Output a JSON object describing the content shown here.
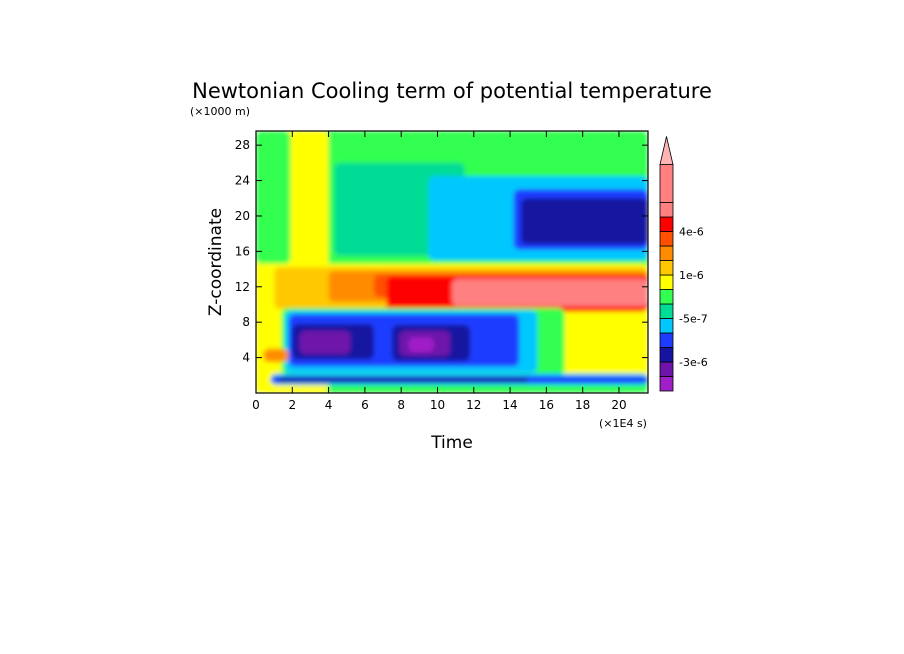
{
  "chart_data": {
    "type": "heatmap",
    "title": "Newtonian Cooling term of potential temperature",
    "xlabel": "Time",
    "ylabel": "Z-coordinate",
    "x_unit": "(×1E4 s)",
    "y_unit": "(×1000 m)",
    "xlim": [
      0,
      21.6
    ],
    "ylim": [
      0,
      29.6
    ],
    "x_ticks": [
      "0",
      "2",
      "4",
      "6",
      "8",
      "10",
      "12",
      "14",
      "16",
      "18",
      "20"
    ],
    "y_ticks": [
      "4",
      "8",
      "12",
      "16",
      "20",
      "24",
      "28"
    ],
    "colorbar": {
      "colors": [
        "#a01ec8",
        "#6e14aa",
        "#1414a0",
        "#1e3cff",
        "#00c8ff",
        "#00dc96",
        "#32ff50",
        "#ffff00",
        "#ffc800",
        "#ff8c00",
        "#ff5000",
        "#ff0000",
        "#ff8080",
        "#ffb4b4"
      ],
      "labels": [
        "4e-6",
        "1e-6",
        "-5e-7",
        "-3e-6"
      ]
    },
    "regions": [
      {
        "color": "#32ff50",
        "x": [
          0,
          21.6
        ],
        "y": [
          0,
          29.6
        ]
      },
      {
        "color": "#ffff00",
        "x": [
          0,
          4
        ],
        "y": [
          0,
          29.6
        ]
      },
      {
        "color": "#32ff50",
        "x": [
          0,
          1.9
        ],
        "y": [
          14.6,
          29.6
        ]
      },
      {
        "color": "#00dc96",
        "x": [
          4.3,
          11.5
        ],
        "y": [
          15.5,
          26
        ]
      },
      {
        "color": "#00c8ff",
        "x": [
          9.5,
          21.6
        ],
        "y": [
          15,
          24.5
        ]
      },
      {
        "color": "#1e3cff",
        "x": [
          14.2,
          21.6
        ],
        "y": [
          16.2,
          23
        ]
      },
      {
        "color": "#1414a0",
        "x": [
          14.6,
          21.6
        ],
        "y": [
          16.8,
          22
        ]
      },
      {
        "color": "#ffff00",
        "x": [
          0,
          21.6
        ],
        "y": [
          1.4,
          14.6
        ]
      },
      {
        "color": "#ffc800",
        "x": [
          1,
          21.6
        ],
        "y": [
          9.5,
          14.2
        ]
      },
      {
        "color": "#ff8c00",
        "x": [
          4,
          21.6
        ],
        "y": [
          10.3,
          13.8
        ]
      },
      {
        "color": "#ff5000",
        "x": [
          6.5,
          21.6
        ],
        "y": [
          10.8,
          13.4
        ]
      },
      {
        "color": "#ff0000",
        "x": [
          7.2,
          21.6
        ],
        "y": [
          9.2,
          13.2
        ]
      },
      {
        "color": "#ff8080",
        "x": [
          10.8,
          21.6
        ],
        "y": [
          9.8,
          12.9
        ]
      },
      {
        "color": "#32ff50",
        "x": [
          1.4,
          17
        ],
        "y": [
          2,
          9.6
        ]
      },
      {
        "color": "#00c8ff",
        "x": [
          1.6,
          15.5
        ],
        "y": [
          2.3,
          9.3
        ]
      },
      {
        "color": "#1e3cff",
        "x": [
          1.8,
          14.5
        ],
        "y": [
          3,
          8.9
        ]
      },
      {
        "color": "#1414a0",
        "x": [
          2,
          6.5
        ],
        "y": [
          3.8,
          7.8
        ]
      },
      {
        "color": "#1414a0",
        "x": [
          7.5,
          11.8
        ],
        "y": [
          3.6,
          7.7
        ]
      },
      {
        "color": "#6e14aa",
        "x": [
          2.4,
          5.2
        ],
        "y": [
          4.4,
          7
        ]
      },
      {
        "color": "#6e14aa",
        "x": [
          7.9,
          10.7
        ],
        "y": [
          4.2,
          7
        ]
      },
      {
        "color": "#a01ec8",
        "x": [
          8.4,
          9.8
        ],
        "y": [
          4.6,
          6.3
        ]
      },
      {
        "color": "#ff8c00",
        "x": [
          0.4,
          1.8
        ],
        "y": [
          3.5,
          5
        ]
      },
      {
        "color": "#00c8ff",
        "x": [
          0.8,
          21.6
        ],
        "y": [
          0.9,
          2.2
        ]
      },
      {
        "color": "#1e3cff",
        "x": [
          0.8,
          21.6
        ],
        "y": [
          1.1,
          1.9
        ]
      },
      {
        "color": "#1414a0",
        "x": [
          1.2,
          15
        ],
        "y": [
          1.2,
          1.8
        ]
      }
    ]
  }
}
